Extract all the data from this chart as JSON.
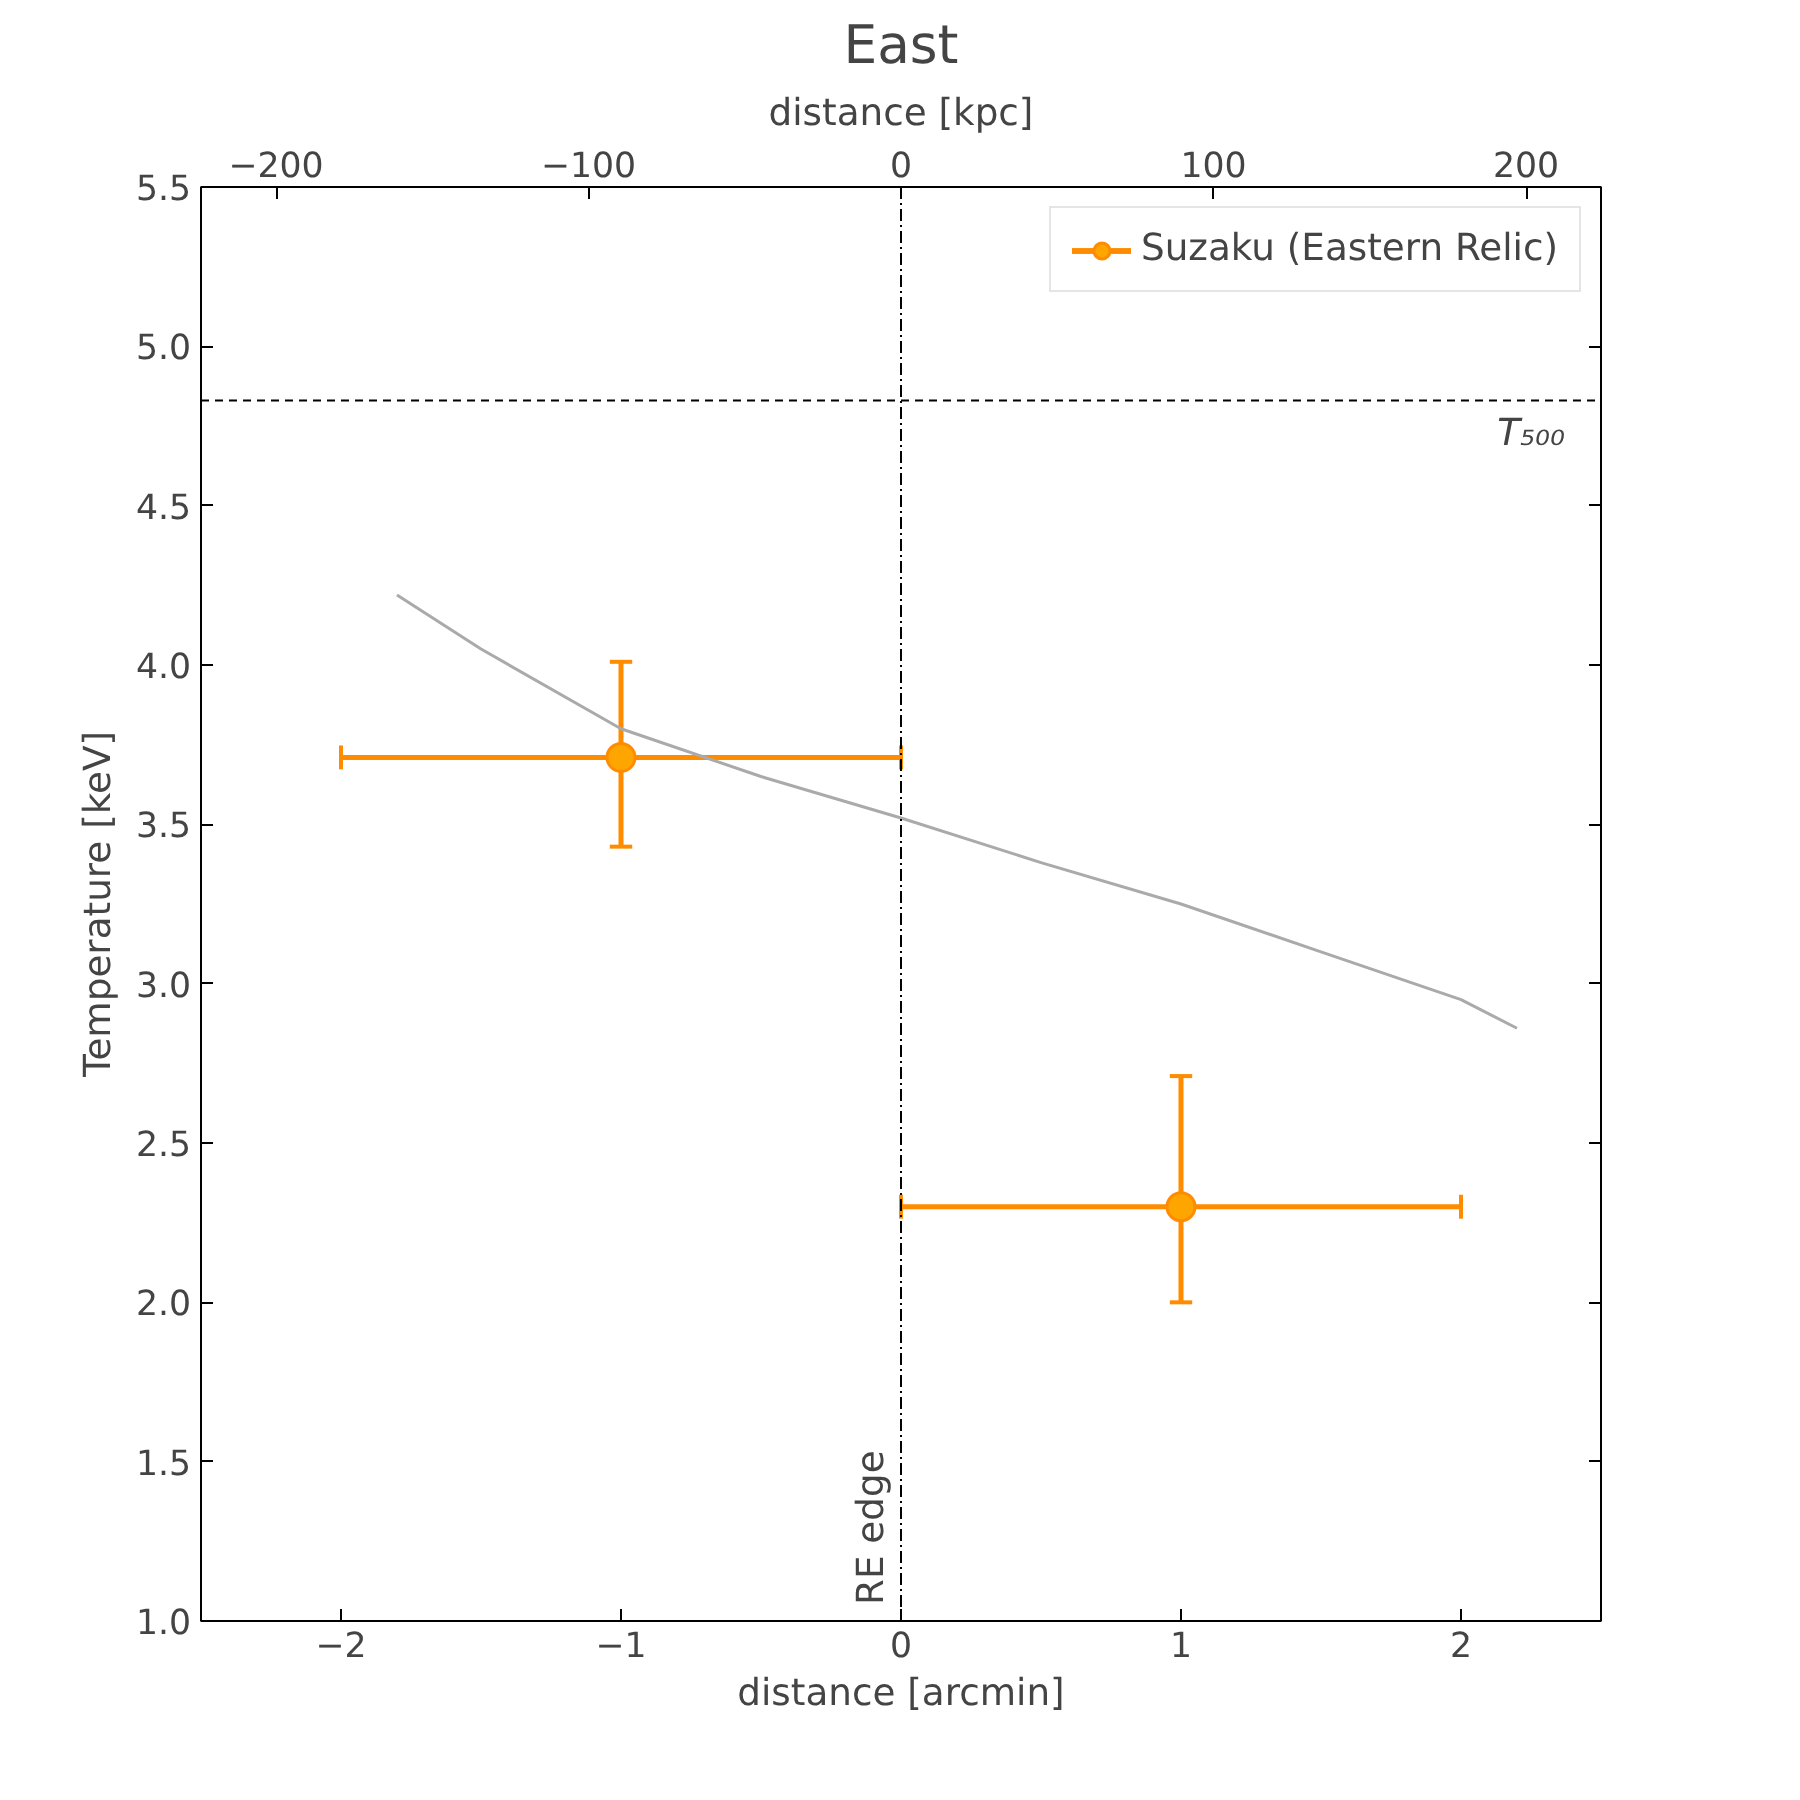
{
  "chart_data": {
    "type": "scatter",
    "title": "East",
    "xlabel": "distance [arcmin]",
    "x2label": "distance [kpc]",
    "ylabel": "Temperature [keV]",
    "xlim": [
      -2.5,
      2.5
    ],
    "xticks": [
      {
        "value": -2,
        "label": "−2"
      },
      {
        "value": -1,
        "label": "−1"
      },
      0,
      1,
      2
    ],
    "x2lim": [
      -224,
      224
    ],
    "x2ticks": [
      {
        "value": -200,
        "label": "−200"
      },
      {
        "value": -100,
        "label": "−100"
      },
      0,
      100,
      200
    ],
    "ylim": [
      1.0,
      5.5
    ],
    "yticks": [
      {
        "value": 1.0,
        "label": "1.0"
      },
      1.5,
      {
        "value": 2.0,
        "label": "2.0"
      },
      2.5,
      {
        "value": 3.0,
        "label": "3.0"
      },
      3.5,
      {
        "value": 4.0,
        "label": "4.0"
      },
      4.5,
      {
        "value": 5.0,
        "label": "5.0"
      },
      5.5
    ],
    "series": [
      {
        "name": "Suzaku (Eastern Relic)",
        "color": "#ff8c00",
        "marker": "circle",
        "x": [
          -1,
          1
        ],
        "values": [
          3.71,
          2.3
        ],
        "errors": [
          [
            3.43,
            4.01
          ],
          [
            2.0,
            2.71
          ]
        ],
        "xerrors": [
          [
            -2,
            0
          ],
          [
            0,
            2
          ]
        ]
      },
      {
        "type": "line",
        "color": "#aaaaaa",
        "marker": "none",
        "x": [
          -1.8,
          -1.5,
          -1.0,
          -0.5,
          0,
          0.5,
          1.0,
          1.5,
          2.0,
          2.2
        ],
        "values": [
          4.22,
          4.05,
          3.8,
          3.65,
          3.52,
          3.38,
          3.25,
          3.1,
          2.95,
          2.86
        ]
      }
    ],
    "ref_lines": [
      {
        "axis": "y",
        "value": 4.83,
        "label": "T₅₀₀",
        "line_style": "dashed",
        "color": "#000000"
      },
      {
        "axis": "x",
        "value": 0,
        "label": "RE edge",
        "line_style": "dashdot",
        "color": "#000000"
      }
    ],
    "legend": "top right",
    "grid": false
  }
}
